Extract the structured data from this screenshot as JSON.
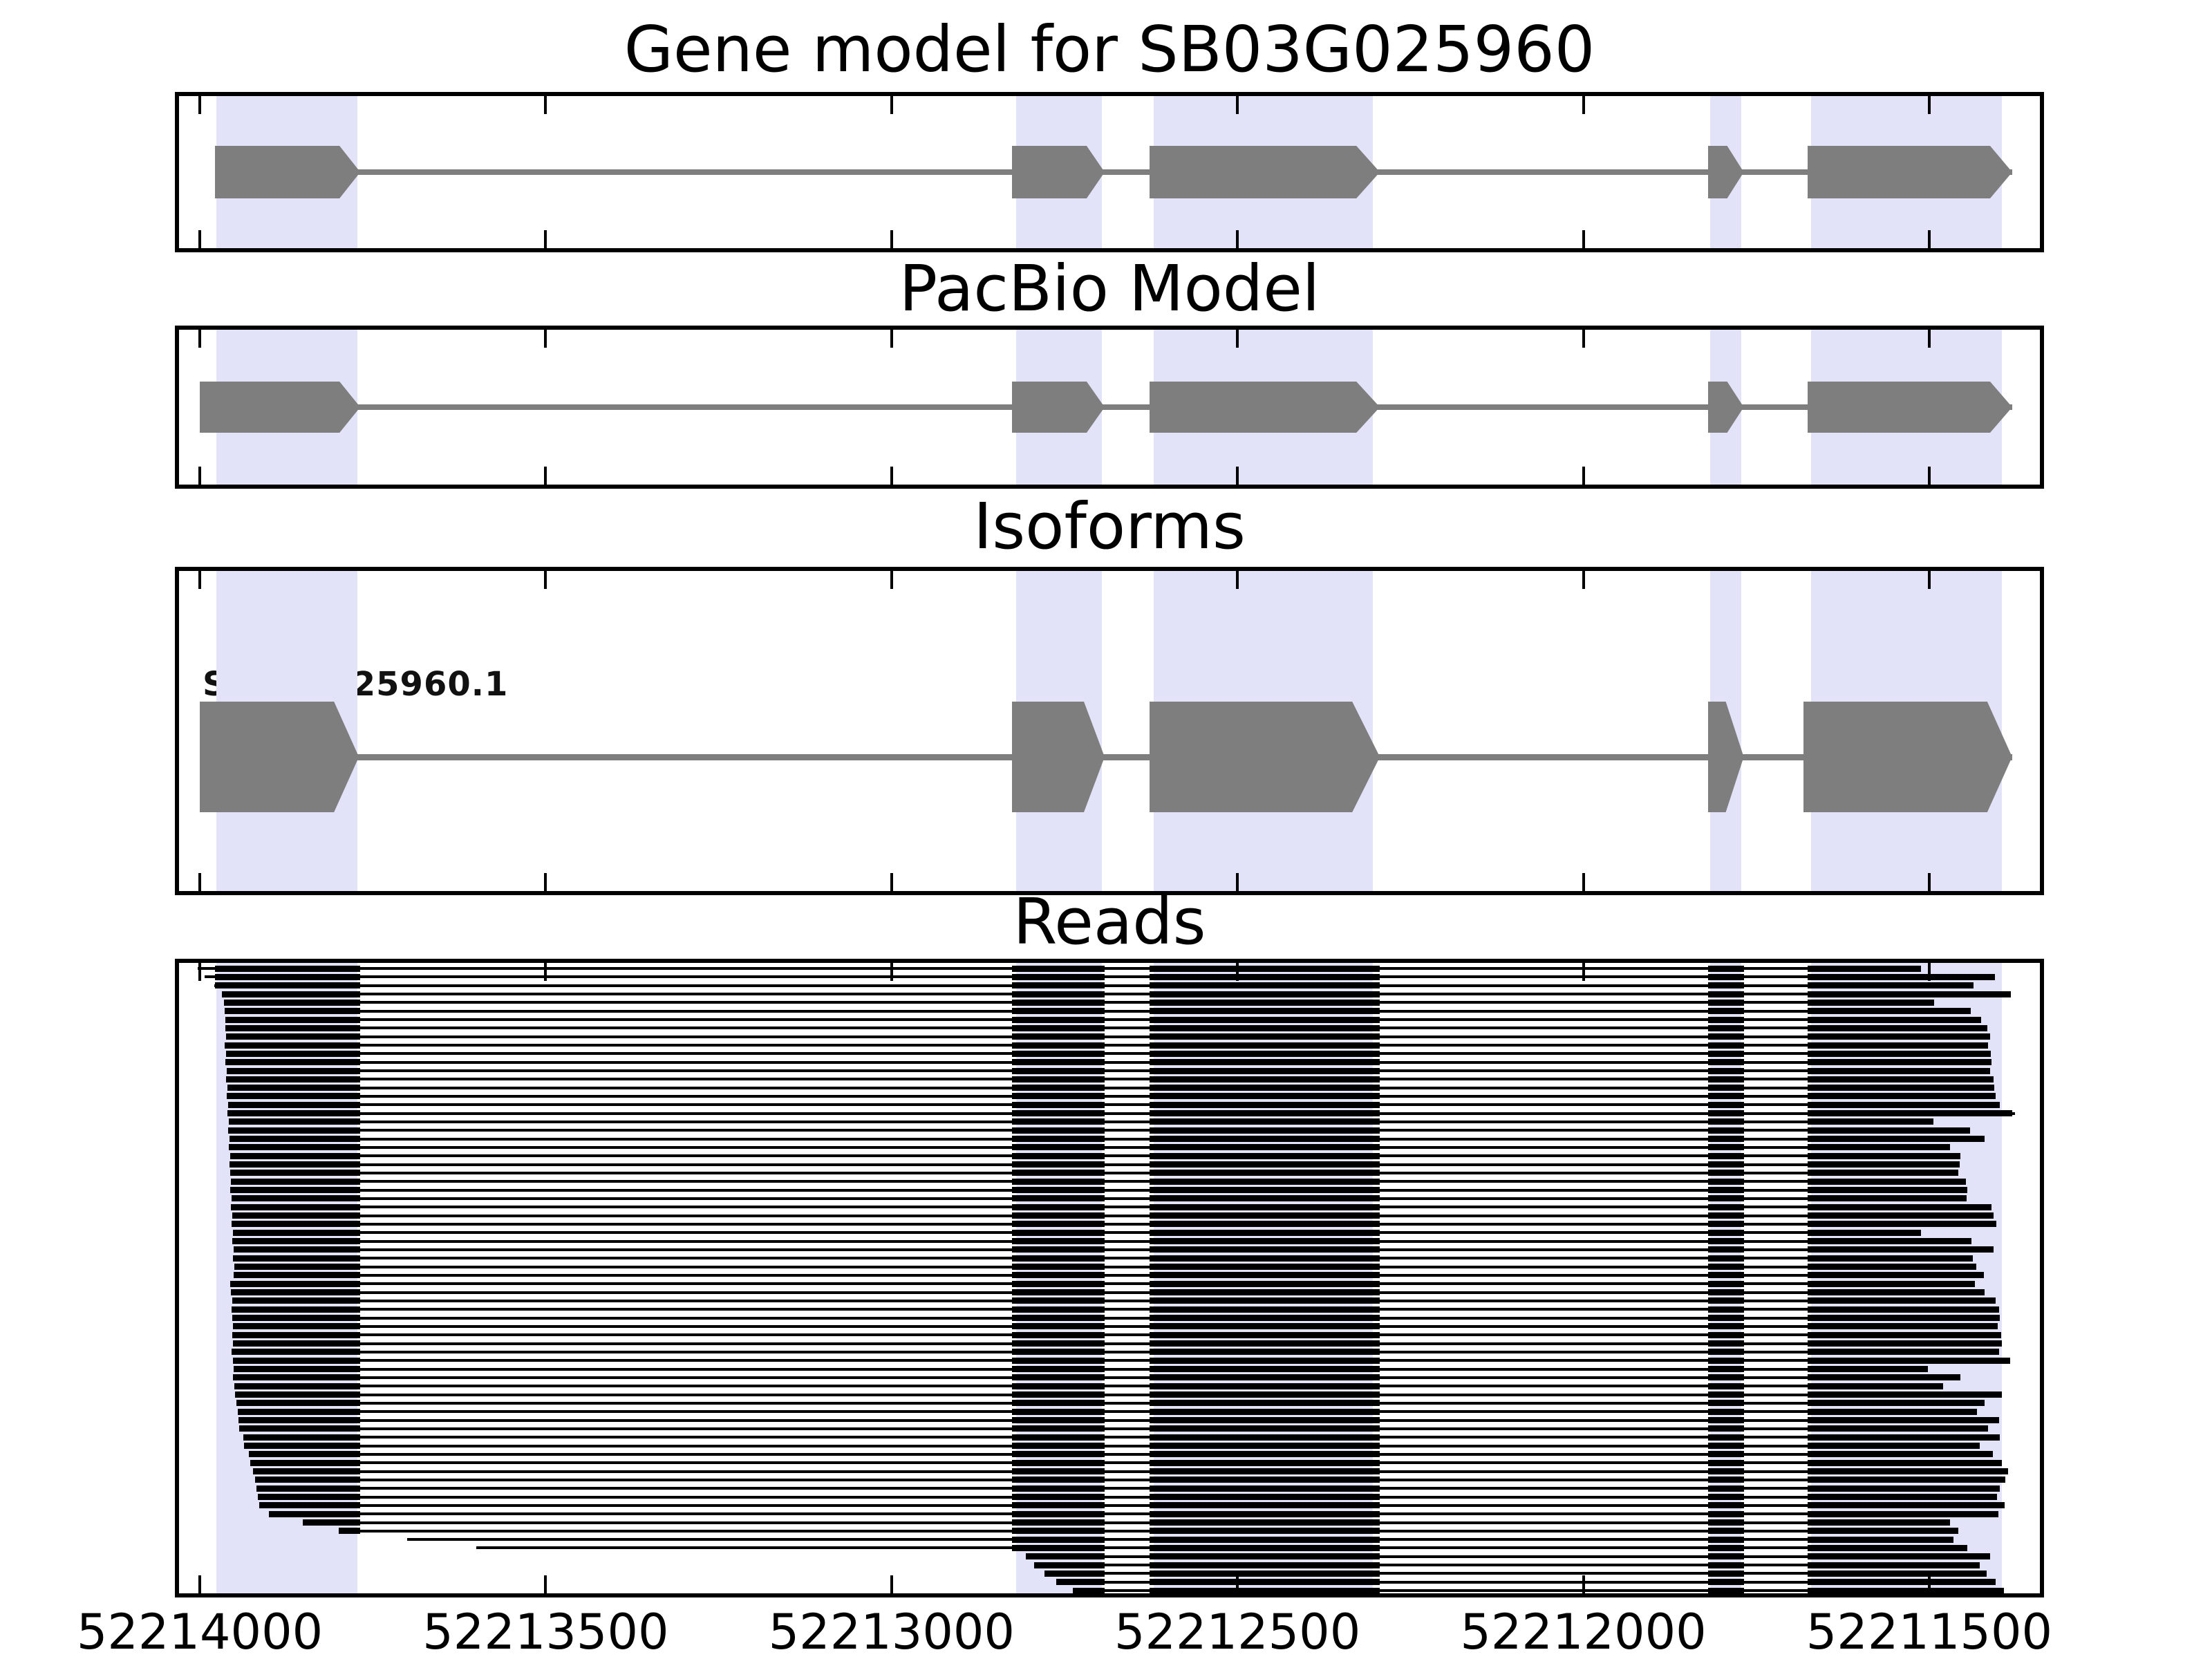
{
  "figure": {
    "titles": {
      "gene_model": "Gene model for SB03G025960",
      "pacbio": "PacBio Model",
      "isoforms": "Isoforms",
      "reads": "Reads"
    },
    "isoform_label": "SB03G025960.1",
    "colors": {
      "exon_gray": "#7e7e7e",
      "intron_gray": "#7e7e7e",
      "highlight_band": "#e2e2f8",
      "read_black": "#000000",
      "frame": "#000000",
      "background": "#ffffff"
    }
  },
  "chart_data": {
    "type": "other",
    "subtype": "gene-model-and-read-alignment-tracks",
    "title": "Gene model for SB03G025960",
    "panel_titles": [
      "Gene model for SB03G025960",
      "PacBio Model",
      "Isoforms",
      "Reads"
    ],
    "x_axis": {
      "xlim": [
        52214030,
        52211340
      ],
      "inverted": true,
      "grid": false,
      "ticks": [
        52214000,
        52213500,
        52213000,
        52212500,
        52212000,
        52211500
      ],
      "tick_labels": [
        "52214000",
        "52213500",
        "52213000",
        "52212500",
        "52212000",
        "52211500"
      ]
    },
    "highlight_regions": [
      [
        52213976,
        52213772
      ],
      [
        52212820,
        52212696
      ],
      [
        52212621,
        52212304
      ],
      [
        52211817,
        52211772
      ],
      [
        52211671,
        52211395
      ]
    ],
    "gene_model_exons": [
      [
        52213978,
        52213768
      ],
      [
        52212826,
        52212692
      ],
      [
        52212627,
        52212294
      ],
      [
        52211820,
        52211768
      ],
      [
        52211676,
        52211380
      ]
    ],
    "pacbio_exons": [
      [
        52214000,
        52213768
      ],
      [
        52212826,
        52212692
      ],
      [
        52212627,
        52212294
      ],
      [
        52211820,
        52211768
      ],
      [
        52211676,
        52211380
      ]
    ],
    "isoforms": [
      {
        "name": "SB03G025960.1",
        "exons": [
          [
            52214000,
            52213770
          ],
          [
            52212826,
            52212692
          ],
          [
            52212627,
            52212294
          ],
          [
            52211820,
            52211768
          ],
          [
            52211682,
            52211380
          ]
        ]
      }
    ],
    "reads": [
      [
        52214003,
        52211512
      ],
      [
        52213993,
        52211405
      ],
      [
        52213979,
        52211436
      ],
      [
        52213968,
        52211382
      ],
      [
        52213965,
        52211493
      ],
      [
        52213964,
        52211440
      ],
      [
        52213963,
        52211425
      ],
      [
        52213963,
        52211416
      ],
      [
        52213962,
        52211412
      ],
      [
        52213964,
        52211415
      ],
      [
        52213962,
        52211411
      ],
      [
        52213963,
        52211410
      ],
      [
        52213961,
        52211412
      ],
      [
        52213962,
        52211407
      ],
      [
        52213960,
        52211406
      ],
      [
        52213961,
        52211404
      ],
      [
        52213959,
        52211398
      ],
      [
        52213960,
        52211376
      ],
      [
        52213958,
        52211494
      ],
      [
        52213959,
        52211441
      ],
      [
        52213957,
        52211420
      ],
      [
        52213958,
        52211470
      ],
      [
        52213956,
        52211455
      ],
      [
        52213957,
        52211456
      ],
      [
        52213956,
        52211458
      ],
      [
        52213955,
        52211447
      ],
      [
        52213956,
        52211445
      ],
      [
        52213954,
        52211446
      ],
      [
        52213955,
        52211410
      ],
      [
        52213953,
        52211407
      ],
      [
        52213954,
        52211403
      ],
      [
        52213952,
        52211512
      ],
      [
        52213953,
        52211439
      ],
      [
        52213951,
        52211407
      ],
      [
        52213952,
        52211437
      ],
      [
        52213950,
        52211432
      ],
      [
        52213951,
        52211421
      ],
      [
        52213956,
        52211434
      ],
      [
        52213955,
        52211420
      ],
      [
        52213953,
        52211404
      ],
      [
        52213954,
        52211399
      ],
      [
        52213953,
        52211398
      ],
      [
        52213952,
        52211401
      ],
      [
        52213953,
        52211396
      ],
      [
        52213952,
        52211395
      ],
      [
        52213954,
        52211399
      ],
      [
        52213952,
        52211383
      ],
      [
        52213951,
        52211502
      ],
      [
        52213952,
        52211455
      ],
      [
        52213950,
        52211480
      ],
      [
        52213949,
        52211395
      ],
      [
        52213947,
        52211420
      ],
      [
        52213945,
        52211431
      ],
      [
        52213944,
        52211399
      ],
      [
        52213943,
        52211415
      ],
      [
        52213937,
        52211398
      ],
      [
        52213936,
        52211427
      ],
      [
        52213929,
        52211408
      ],
      [
        52213927,
        52211395
      ],
      [
        52213923,
        52211386
      ],
      [
        52213920,
        52211390
      ],
      [
        52213918,
        52211398
      ],
      [
        52213916,
        52211402
      ],
      [
        52213914,
        52211391
      ],
      [
        52213900,
        52211400
      ],
      [
        52213851,
        52211470
      ],
      [
        52213799,
        52211458
      ],
      [
        52213700,
        52211465
      ],
      [
        52213600,
        52211445
      ],
      [
        52212806,
        52211412
      ],
      [
        52212794,
        52211427
      ],
      [
        52212779,
        52211417
      ],
      [
        52212762,
        52211404
      ],
      [
        52212738,
        52211392
      ]
    ]
  }
}
